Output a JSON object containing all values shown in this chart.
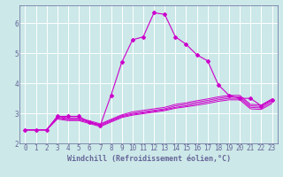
{
  "xlabel": "Windchill (Refroidissement éolien,°C)",
  "background_color": "#cce8e8",
  "line_color": "#cc00cc",
  "grid_color": "#ffffff",
  "spine_color": "#666699",
  "xlim": [
    -0.5,
    23.5
  ],
  "ylim": [
    2.0,
    6.6
  ],
  "yticks": [
    2,
    3,
    4,
    5,
    6
  ],
  "xticks": [
    0,
    1,
    2,
    3,
    4,
    5,
    6,
    7,
    8,
    9,
    10,
    11,
    12,
    13,
    14,
    15,
    16,
    17,
    18,
    19,
    20,
    21,
    22,
    23
  ],
  "series": [
    {
      "x": [
        0,
        1,
        2,
        3,
        4,
        5,
        6,
        7,
        8,
        9,
        10,
        11,
        12,
        13,
        14,
        15,
        16,
        17,
        18,
        19,
        20,
        21,
        22,
        23
      ],
      "y": [
        2.45,
        2.45,
        2.45,
        2.9,
        2.9,
        2.9,
        2.7,
        2.6,
        3.6,
        4.7,
        5.45,
        5.55,
        6.35,
        6.3,
        5.55,
        5.3,
        4.95,
        4.75,
        3.95,
        3.6,
        3.5,
        3.5,
        3.25,
        3.45
      ],
      "marker": true
    },
    {
      "x": [
        0,
        1,
        2,
        3,
        4,
        5,
        6,
        7,
        8,
        9,
        10,
        11,
        12,
        13,
        14,
        15,
        16,
        17,
        18,
        19,
        20,
        21,
        22,
        23
      ],
      "y": [
        2.45,
        2.45,
        2.45,
        2.9,
        2.85,
        2.85,
        2.75,
        2.65,
        2.8,
        2.95,
        3.05,
        3.1,
        3.15,
        3.2,
        3.3,
        3.35,
        3.42,
        3.48,
        3.55,
        3.6,
        3.6,
        3.3,
        3.28,
        3.48
      ],
      "marker": false
    },
    {
      "x": [
        0,
        1,
        2,
        3,
        4,
        5,
        6,
        7,
        8,
        9,
        10,
        11,
        12,
        13,
        14,
        15,
        16,
        17,
        18,
        19,
        20,
        21,
        22,
        23
      ],
      "y": [
        2.45,
        2.45,
        2.45,
        2.87,
        2.82,
        2.82,
        2.72,
        2.62,
        2.77,
        2.92,
        3.0,
        3.05,
        3.1,
        3.15,
        3.25,
        3.3,
        3.37,
        3.43,
        3.5,
        3.55,
        3.55,
        3.25,
        3.23,
        3.43
      ],
      "marker": false
    },
    {
      "x": [
        0,
        1,
        2,
        3,
        4,
        5,
        6,
        7,
        8,
        9,
        10,
        11,
        12,
        13,
        14,
        15,
        16,
        17,
        18,
        19,
        20,
        21,
        22,
        23
      ],
      "y": [
        2.45,
        2.45,
        2.45,
        2.84,
        2.79,
        2.79,
        2.69,
        2.59,
        2.74,
        2.89,
        2.97,
        3.02,
        3.07,
        3.12,
        3.2,
        3.25,
        3.32,
        3.38,
        3.45,
        3.5,
        3.5,
        3.2,
        3.18,
        3.38
      ],
      "marker": false
    },
    {
      "x": [
        0,
        1,
        2,
        3,
        4,
        5,
        6,
        7,
        8,
        9,
        10,
        11,
        12,
        13,
        14,
        15,
        16,
        17,
        18,
        19,
        20,
        21,
        22,
        23
      ],
      "y": [
        2.45,
        2.45,
        2.45,
        2.81,
        2.76,
        2.76,
        2.66,
        2.56,
        2.71,
        2.86,
        2.94,
        2.99,
        3.04,
        3.09,
        3.17,
        3.22,
        3.27,
        3.33,
        3.4,
        3.45,
        3.45,
        3.15,
        3.13,
        3.33
      ],
      "marker": false
    }
  ],
  "tick_fontsize": 5.5,
  "xlabel_fontsize": 6.0
}
